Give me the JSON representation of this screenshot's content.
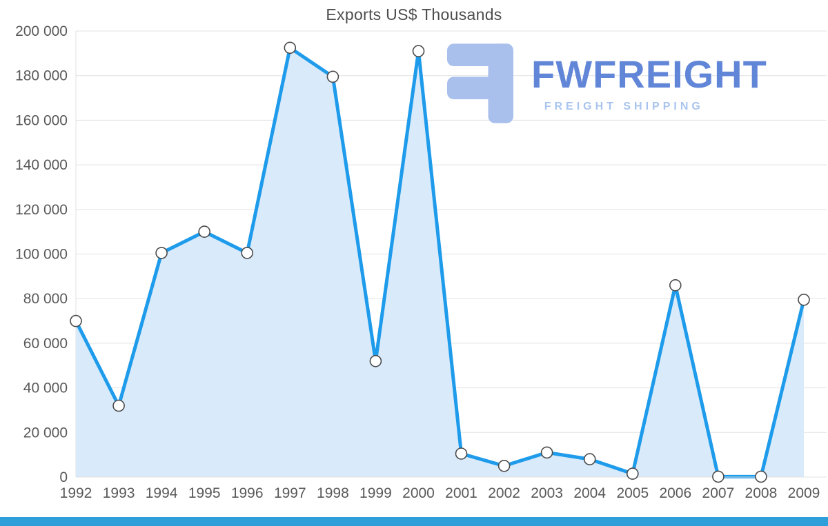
{
  "page": {
    "title": "Exports US$ Thousands"
  },
  "logo": {
    "wordmark": "FWFREIGHT",
    "subtitle": "FREIGHT SHIPPING",
    "icon": "fwfreight-mirrored-f-icon",
    "icon_color": "#a9bfec",
    "wordmark_color": "#6186d8",
    "subtitle_color": "#a9c4ee"
  },
  "chart_data": {
    "type": "area",
    "title": "Exports US$ Thousands",
    "categories": [
      "1992",
      "1993",
      "1994",
      "1995",
      "1996",
      "1997",
      "1998",
      "1999",
      "2000",
      "2001",
      "2002",
      "2003",
      "2004",
      "2005",
      "2006",
      "2007",
      "2008",
      "2009"
    ],
    "values": [
      70000,
      32000,
      100500,
      110000,
      100500,
      192500,
      179500,
      52000,
      191000,
      10500,
      5000,
      11000,
      8000,
      1500,
      86000,
      200,
      200,
      79500
    ],
    "xlabel": "",
    "ylabel": "",
    "ylim": [
      0,
      200000
    ],
    "grid": true,
    "legend_position": "none",
    "y_ticks": [
      {
        "value": 0,
        "label": "0"
      },
      {
        "value": 20000,
        "label": "20 000"
      },
      {
        "value": 40000,
        "label": "40 000"
      },
      {
        "value": 60000,
        "label": "60 000"
      },
      {
        "value": 80000,
        "label": "80 000"
      },
      {
        "value": 100000,
        "label": "100 000"
      },
      {
        "value": 120000,
        "label": "120 000"
      },
      {
        "value": 140000,
        "label": "140 000"
      },
      {
        "value": 160000,
        "label": "160 000"
      },
      {
        "value": 180000,
        "label": "180 000"
      },
      {
        "value": 200000,
        "label": "200 000"
      }
    ],
    "line_color": "#1e9bea",
    "fill_color": "#d9eafb",
    "marker_fill": "#ffffff",
    "marker_stroke": "#4a4a4a",
    "grid_color": "#e2e2e2",
    "tick_color": "#595959"
  },
  "footer": {
    "bar_color": "#2e9fd9"
  }
}
